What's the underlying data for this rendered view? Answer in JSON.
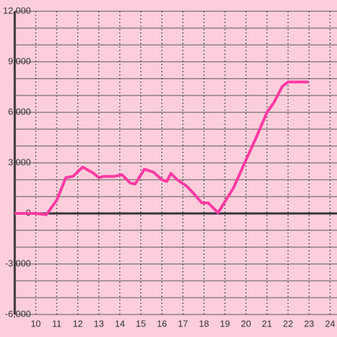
{
  "chart_data": {
    "type": "line",
    "x": [
      9,
      10,
      10.5,
      11,
      11.43,
      11.77,
      12.23,
      12.73,
      13,
      13.23,
      13.73,
      14.1,
      14.5,
      14.73,
      15.17,
      15.6,
      16,
      16.23,
      16.43,
      16.73,
      17.17,
      17.5,
      17.9,
      18.2,
      18.67,
      19.4,
      19.9,
      20.47,
      21,
      21.33,
      21.73,
      22,
      22.97
    ],
    "series": [
      {
        "color": "#ff3aa3",
        "values": [
          0,
          0,
          -80,
          790,
          2125,
          2200,
          2750,
          2400,
          2125,
          2200,
          2200,
          2300,
          1800,
          1750,
          2625,
          2450,
          2000,
          1900,
          2375,
          2000,
          1625,
          1200,
          625,
          625,
          40,
          1500,
          2900,
          4460,
          6000,
          6580,
          7540,
          7800,
          7800
        ]
      }
    ],
    "xlim": [
      9,
      24.33
    ],
    "xticks": [
      10,
      11,
      12,
      13,
      14,
      15,
      16,
      17,
      18,
      19,
      20,
      21,
      22,
      23,
      24
    ],
    "ylim": [
      -6000,
      12000
    ],
    "yticks": [
      {
        "value": -6000,
        "label": "-6,000"
      },
      {
        "value": -3000,
        "label": "-3,000"
      },
      0,
      {
        "value": 3000,
        "label": "3,000"
      },
      {
        "value": 6000,
        "label": "6,000"
      },
      {
        "value": 9000,
        "label": "9,000"
      },
      {
        "value": 12000,
        "label": "12,000"
      }
    ],
    "grid": true
  }
}
